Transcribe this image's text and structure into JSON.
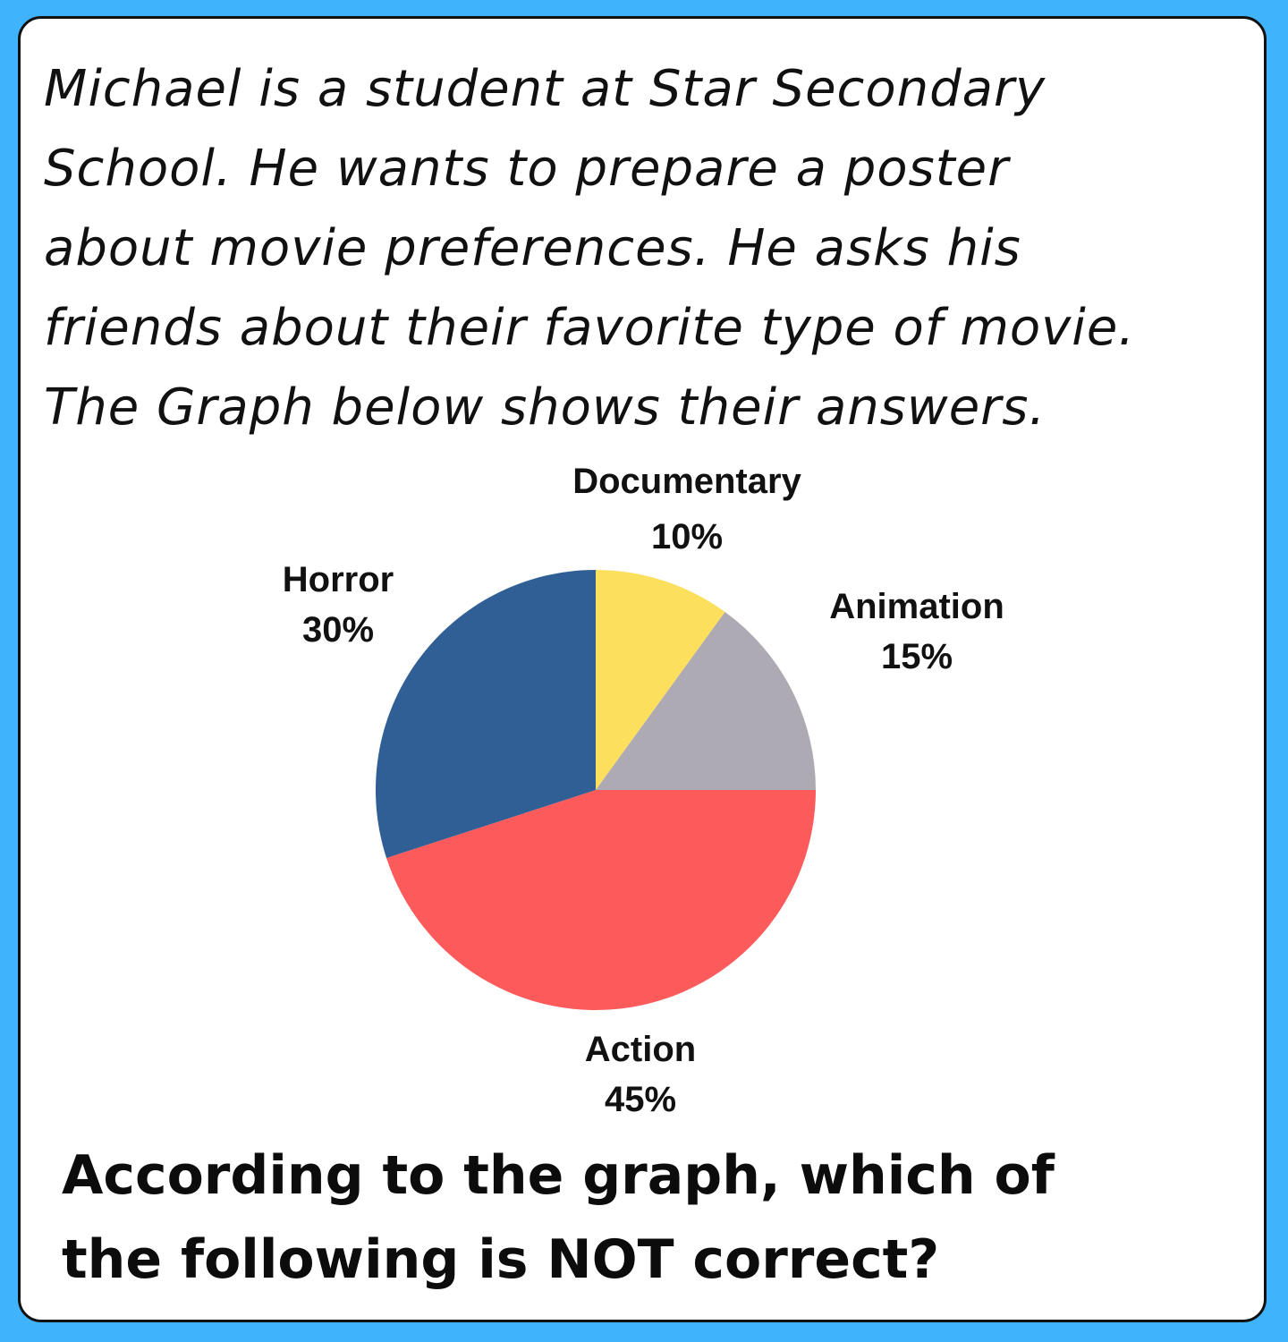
{
  "intro_lines": [
    "Michael is a student at Star Secondary",
    "School. He wants to prepare a poster",
    "about movie preferences. He asks his",
    "friends about their favorite type of movie.",
    "The Graph below shows their answers."
  ],
  "question_lines": [
    "According to the graph, which of",
    "the following is NOT correct?"
  ],
  "colors": {
    "background": "#3fb3fb",
    "card": "#ffffff"
  },
  "chart_data": {
    "type": "pie",
    "start_angle_deg": 0,
    "direction": "clockwise",
    "slices": [
      {
        "name": "Documentary",
        "value": 10,
        "label": "10%",
        "color": "#fddf5e"
      },
      {
        "name": "Animation",
        "value": 15,
        "label": "15%",
        "color": "#aeaab3"
      },
      {
        "name": "Action",
        "value": 45,
        "label": "45%",
        "color": "#fd5b5b"
      },
      {
        "name": "Horror",
        "value": 30,
        "label": "30%",
        "color": "#305f96"
      }
    ]
  }
}
